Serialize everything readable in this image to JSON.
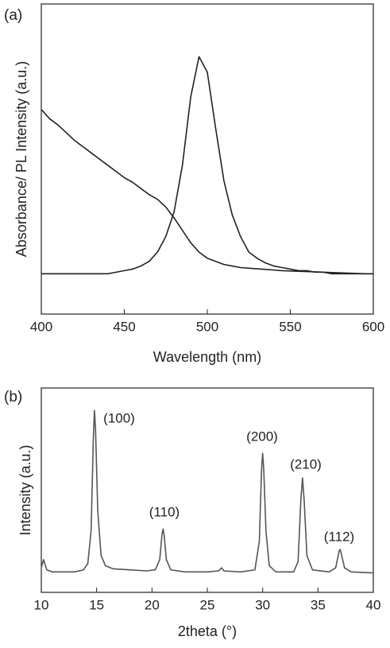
{
  "chart_data": [
    {
      "type": "line",
      "label": "(a)",
      "xlabel": "Wavelength (nm)",
      "ylabel": "Absorbance/ PL Intensity (a.u.)",
      "x": [
        400,
        405,
        410,
        415,
        420,
        425,
        430,
        435,
        440,
        445,
        450,
        455,
        460,
        465,
        470,
        475,
        480,
        485,
        490,
        495,
        500,
        505,
        510,
        515,
        520,
        525,
        530,
        535,
        540,
        545,
        550,
        555,
        560,
        565,
        570,
        575,
        580,
        585,
        590,
        595,
        600
      ],
      "series": [
        {
          "color": "#222222",
          "values": [
            0.66,
            0.63,
            0.61,
            0.585,
            0.56,
            0.54,
            0.52,
            0.5,
            0.48,
            0.46,
            0.44,
            0.425,
            0.405,
            0.385,
            0.37,
            0.345,
            0.31,
            0.27,
            0.23,
            0.2,
            0.18,
            0.17,
            0.16,
            0.155,
            0.15,
            0.148,
            0.146,
            0.144,
            0.142,
            0.14,
            0.139,
            0.138,
            0.137,
            0.136,
            0.135,
            0.134,
            0.133,
            0.132,
            0.131,
            0.13,
            0.13
          ]
        },
        {
          "color": "#222222",
          "values": [
            0.13,
            0.13,
            0.13,
            0.13,
            0.13,
            0.13,
            0.13,
            0.13,
            0.13,
            0.135,
            0.14,
            0.145,
            0.155,
            0.17,
            0.2,
            0.25,
            0.33,
            0.48,
            0.7,
            0.83,
            0.78,
            0.6,
            0.43,
            0.32,
            0.25,
            0.2,
            0.18,
            0.165,
            0.155,
            0.15,
            0.145,
            0.14,
            0.14,
            0.135,
            0.135,
            0.13,
            0.13,
            0.13,
            0.13,
            0.13,
            0.13
          ]
        }
      ],
      "xlim": [
        400,
        600
      ],
      "xticks": [
        400,
        450,
        500,
        550,
        600
      ],
      "ylim": [
        0,
        1
      ]
    },
    {
      "type": "line",
      "label": "(b)",
      "xlabel": "2theta (°)",
      "ylabel": "Intensity (a.u.)",
      "annotations": [
        "(100)",
        "(110)",
        "(200)",
        "(210)",
        "(112)"
      ],
      "x": [
        10,
        10.2,
        10.5,
        11,
        12,
        13,
        13.8,
        14.2,
        14.5,
        14.7,
        14.8,
        14.9,
        15.1,
        15.4,
        15.8,
        16.5,
        18,
        19.5,
        20.3,
        20.7,
        20.9,
        21,
        21.1,
        21.3,
        21.7,
        23,
        25,
        26,
        26.3,
        26.5,
        28,
        29.3,
        29.7,
        29.9,
        30,
        30.1,
        30.3,
        30.6,
        31.2,
        32.8,
        33.2,
        33.45,
        33.6,
        33.75,
        34,
        34.5,
        36,
        36.6,
        36.9,
        37,
        37.1,
        37.4,
        38,
        40
      ],
      "series": [
        {
          "color": "#555555",
          "values": [
            0.12,
            0.16,
            0.11,
            0.1,
            0.1,
            0.1,
            0.11,
            0.14,
            0.3,
            0.75,
            0.89,
            0.8,
            0.4,
            0.18,
            0.13,
            0.115,
            0.11,
            0.105,
            0.11,
            0.16,
            0.28,
            0.31,
            0.28,
            0.16,
            0.11,
            0.1,
            0.1,
            0.105,
            0.12,
            0.105,
            0.1,
            0.11,
            0.25,
            0.6,
            0.68,
            0.6,
            0.3,
            0.13,
            0.1,
            0.1,
            0.15,
            0.45,
            0.56,
            0.45,
            0.18,
            0.11,
            0.1,
            0.12,
            0.2,
            0.21,
            0.19,
            0.12,
            0.1,
            0.095
          ]
        }
      ],
      "xlim": [
        10,
        40
      ],
      "xticks": [
        10,
        15,
        20,
        25,
        30,
        35,
        40
      ],
      "ylim": [
        0,
        1
      ]
    }
  ]
}
